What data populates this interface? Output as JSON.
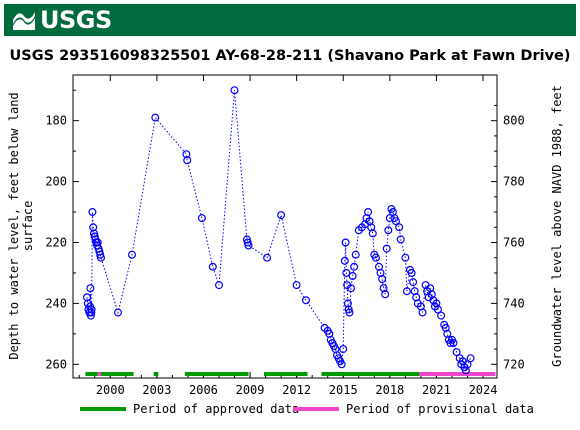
{
  "header": {
    "logo_text": "USGS",
    "banner_color": "#006b3c"
  },
  "chart_data": {
    "type": "scatter",
    "title": "USGS 293516098325501 AY-68-28-211 (Shavano Park at Fawn Drive)",
    "ylabel_left": "Depth to water level, feet below land surface",
    "ylabel_left_lines": [
      "Depth to water level, feet below land",
      "surface"
    ],
    "ylabel_right": "Groundwater level above NAVD 1988, feet",
    "x_ticks": [
      "2000",
      "2003",
      "2006",
      "2009",
      "2012",
      "2015",
      "2018",
      "2021",
      "2024"
    ],
    "x_tick_values": [
      2000,
      2003,
      2006,
      2009,
      2012,
      2015,
      2018,
      2021,
      2024
    ],
    "xlim": [
      1997.6,
      2024.9
    ],
    "y_left_ticks": [
      180,
      200,
      220,
      240,
      260
    ],
    "y_left_lim": [
      264.5,
      165
    ],
    "y_right_ticks": [
      720,
      740,
      760,
      780,
      800
    ],
    "y_right_offset": 980,
    "marker_color": "#0000ff",
    "series": [
      {
        "points": [
          [
            1998.5,
            238
          ],
          [
            1998.55,
            240
          ],
          [
            1998.6,
            242
          ],
          [
            1998.65,
            243
          ],
          [
            1998.7,
            241
          ],
          [
            1998.72,
            235
          ],
          [
            1998.75,
            244
          ],
          [
            1998.78,
            243
          ],
          [
            1998.8,
            242
          ],
          [
            1998.85,
            210
          ],
          [
            1998.9,
            215
          ],
          [
            1998.95,
            217
          ],
          [
            1999.0,
            218
          ],
          [
            1999.05,
            219
          ],
          [
            1999.1,
            220
          ],
          [
            1999.15,
            221
          ],
          [
            1999.2,
            220
          ],
          [
            1999.25,
            222
          ],
          [
            1999.3,
            223
          ],
          [
            1999.35,
            224
          ],
          [
            1999.4,
            225
          ],
          [
            2000.5,
            243
          ],
          [
            2001.4,
            224
          ],
          [
            2002.9,
            179
          ],
          [
            2004.9,
            191
          ],
          [
            2004.95,
            193
          ],
          [
            2005.9,
            212
          ],
          [
            2006.6,
            228
          ],
          [
            2007.0,
            234
          ],
          [
            2008.0,
            170
          ],
          [
            2008.8,
            219
          ],
          [
            2008.85,
            220
          ],
          [
            2008.9,
            221
          ],
          [
            2010.1,
            225
          ],
          [
            2011.0,
            211
          ],
          [
            2012.0,
            234
          ],
          [
            2012.6,
            239
          ],
          [
            2013.8,
            248
          ],
          [
            2014.0,
            249
          ],
          [
            2014.1,
            250
          ],
          [
            2014.2,
            252
          ],
          [
            2014.3,
            253
          ],
          [
            2014.4,
            254
          ],
          [
            2014.5,
            255
          ],
          [
            2014.6,
            257
          ],
          [
            2014.7,
            258
          ],
          [
            2014.8,
            259
          ],
          [
            2014.9,
            260
          ],
          [
            2015.0,
            255
          ],
          [
            2015.1,
            226
          ],
          [
            2015.15,
            220
          ],
          [
            2015.2,
            230
          ],
          [
            2015.25,
            234
          ],
          [
            2015.3,
            240
          ],
          [
            2015.35,
            242
          ],
          [
            2015.4,
            243
          ],
          [
            2015.5,
            235
          ],
          [
            2015.6,
            231
          ],
          [
            2015.7,
            228
          ],
          [
            2015.8,
            224
          ],
          [
            2016.0,
            216
          ],
          [
            2016.2,
            215
          ],
          [
            2016.4,
            214
          ],
          [
            2016.5,
            212
          ],
          [
            2016.6,
            210
          ],
          [
            2016.7,
            213
          ],
          [
            2016.8,
            215
          ],
          [
            2016.9,
            217
          ],
          [
            2017.0,
            224
          ],
          [
            2017.1,
            225
          ],
          [
            2017.3,
            228
          ],
          [
            2017.4,
            230
          ],
          [
            2017.5,
            232
          ],
          [
            2017.6,
            235
          ],
          [
            2017.7,
            237
          ],
          [
            2017.8,
            222
          ],
          [
            2017.9,
            216
          ],
          [
            2018.0,
            212
          ],
          [
            2018.1,
            209
          ],
          [
            2018.2,
            210
          ],
          [
            2018.3,
            212
          ],
          [
            2018.4,
            213
          ],
          [
            2018.6,
            215
          ],
          [
            2018.7,
            219
          ],
          [
            2019.0,
            225
          ],
          [
            2019.1,
            236
          ],
          [
            2019.3,
            229
          ],
          [
            2019.4,
            230
          ],
          [
            2019.5,
            233
          ],
          [
            2019.6,
            236
          ],
          [
            2019.7,
            238
          ],
          [
            2019.8,
            240
          ],
          [
            2020.0,
            241
          ],
          [
            2020.1,
            243
          ],
          [
            2020.3,
            234
          ],
          [
            2020.4,
            236
          ],
          [
            2020.5,
            238
          ],
          [
            2020.6,
            235
          ],
          [
            2020.7,
            237
          ],
          [
            2020.8,
            239
          ],
          [
            2020.9,
            241
          ],
          [
            2021.0,
            240
          ],
          [
            2021.1,
            242
          ],
          [
            2021.3,
            244
          ],
          [
            2021.5,
            247
          ],
          [
            2021.6,
            248
          ],
          [
            2021.7,
            250
          ],
          [
            2021.8,
            252
          ],
          [
            2021.9,
            253
          ],
          [
            2022.0,
            252
          ],
          [
            2022.1,
            253
          ],
          [
            2022.3,
            256
          ],
          [
            2022.5,
            258
          ],
          [
            2022.6,
            260
          ],
          [
            2022.7,
            259
          ],
          [
            2022.8,
            261
          ],
          [
            2022.9,
            262
          ],
          [
            2023.0,
            260
          ],
          [
            2023.2,
            258
          ]
        ]
      }
    ],
    "legend": {
      "placement": "bottom",
      "approved_label": "Period of approved data",
      "provisional_label": "Period of provisional data",
      "approved_color": "#009900",
      "provisional_color": "#ee44cc"
    },
    "approved_periods": [
      [
        1998.4,
        1999.2
      ],
      [
        1999.4,
        2001.5
      ],
      [
        2002.8,
        2003.1
      ],
      [
        2004.8,
        2008.9
      ],
      [
        2009.9,
        2012.7
      ],
      [
        2013.6,
        2019.9
      ]
    ],
    "provisional_periods": [
      [
        1999.2,
        1999.4
      ],
      [
        2019.9,
        2024.8
      ]
    ]
  }
}
